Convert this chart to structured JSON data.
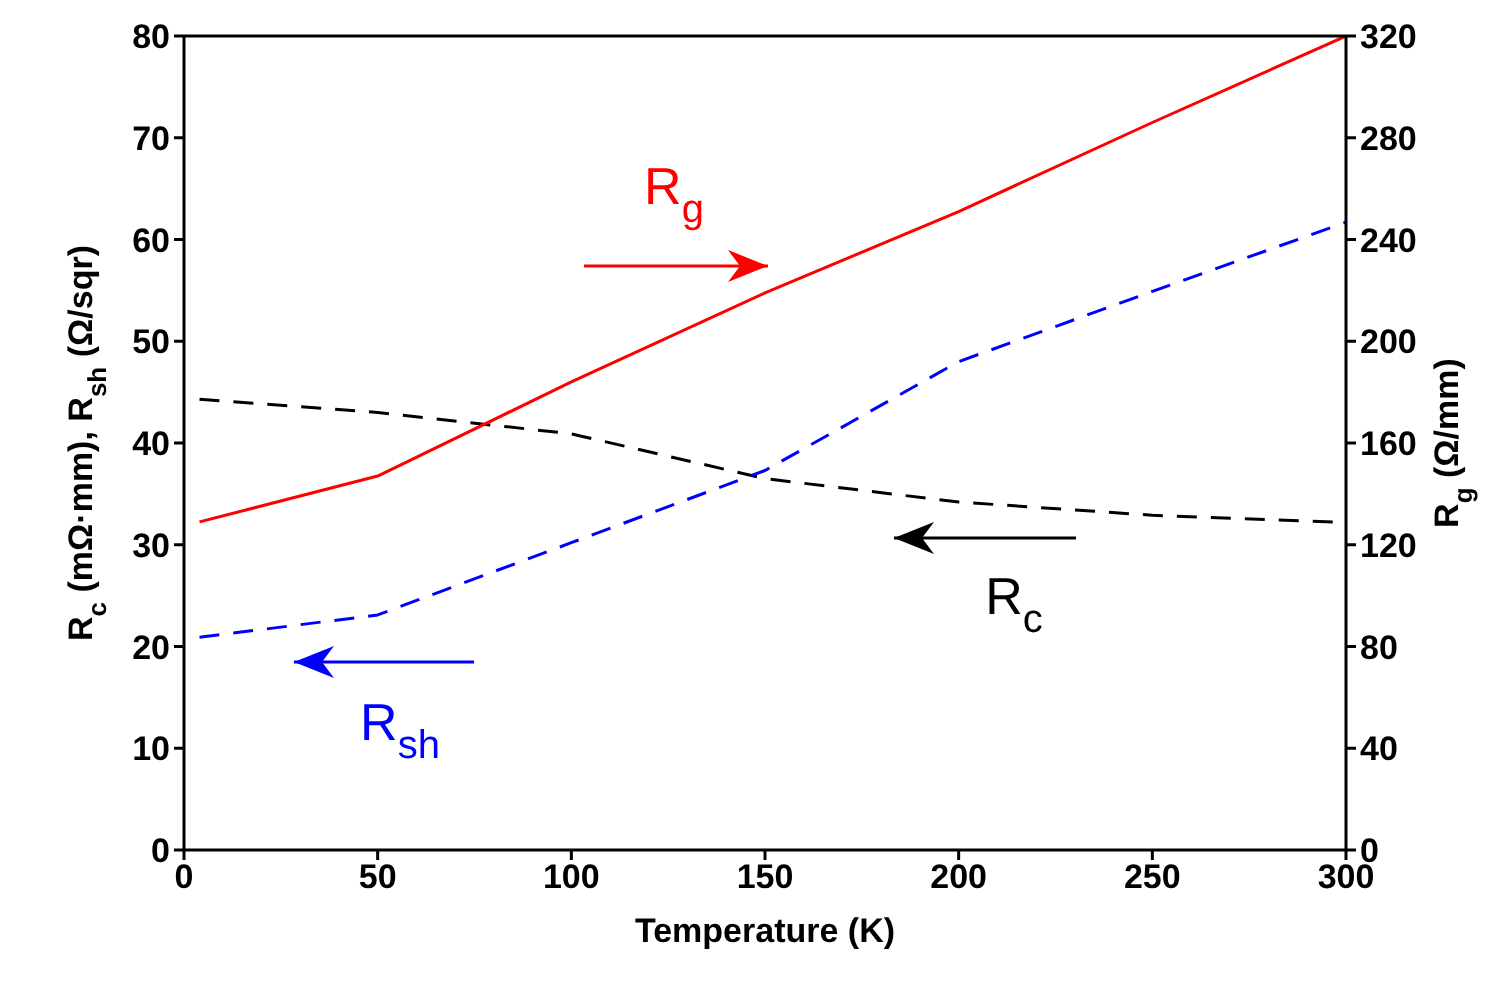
{
  "chart_data": {
    "type": "line",
    "xlabel": "Temperature (K)",
    "ylabel": "R$_{c}$ (mΩ·mm), R$_{sh}$ (Ω/sqr)",
    "y2label": "R$_{g}$ (Ω/mm)",
    "x": [
      4,
      50,
      100,
      150,
      200,
      250,
      300
    ],
    "series": [
      {
        "color": "#000000",
        "line_style": "dashed",
        "values": [
          44.3,
          43.0,
          40.9,
          36.5,
          34.2,
          32.9,
          32.2
        ]
      },
      {
        "color": "#0000ff",
        "line_style": "dashed",
        "values": [
          20.9,
          23.1,
          30.2,
          37.3,
          48.0,
          54.9,
          61.7
        ]
      },
      {
        "color": "#ff0000",
        "line_style": "solid",
        "axis": "y2",
        "values": [
          129,
          147,
          184,
          219,
          251,
          286,
          320
        ]
      }
    ],
    "xlim": [
      0,
      300
    ],
    "xticks": [
      0,
      50,
      100,
      150,
      200,
      250,
      300
    ],
    "ylim": [
      0,
      80
    ],
    "yticks": [
      0,
      10,
      20,
      30,
      40,
      50,
      60,
      70,
      80
    ],
    "y2lim": [
      0,
      320
    ],
    "y2ticks": [
      0,
      40,
      80,
      120,
      160,
      200,
      240,
      280,
      320
    ],
    "grid": false,
    "legend": false,
    "marker": "none",
    "annotations": [
      "R$_{c}$",
      "R$_{sh}$",
      "R$_{g}$"
    ]
  }
}
